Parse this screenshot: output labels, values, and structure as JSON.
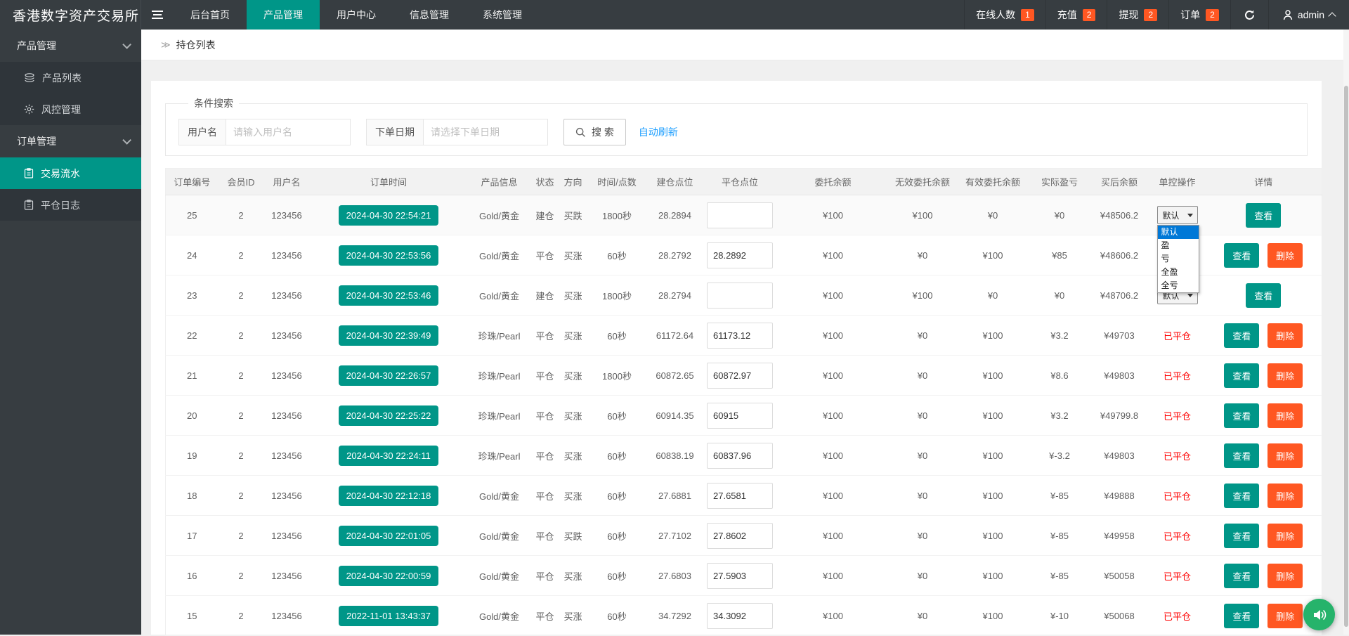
{
  "colors": {
    "teal": "#009688",
    "orange": "#ff5722",
    "red": "#ff0000",
    "green": "#009a00",
    "blue": "#1e9fff"
  },
  "navbar": {
    "logo": "香港数字资产交易所",
    "menu": [
      {
        "label": "后台首页",
        "active": false
      },
      {
        "label": "产品管理",
        "active": true
      },
      {
        "label": "用户中心",
        "active": false
      },
      {
        "label": "信息管理",
        "active": false
      },
      {
        "label": "系统管理",
        "active": false
      }
    ],
    "stats": [
      {
        "label": "在线人数",
        "badge": "1"
      },
      {
        "label": "充值",
        "badge": "2"
      },
      {
        "label": "提现",
        "badge": "2"
      },
      {
        "label": "订单",
        "badge": "2"
      }
    ],
    "refresh_icon": "refresh-icon",
    "user": "admin"
  },
  "sidebar": {
    "items": [
      {
        "label": "产品管理",
        "type": "group"
      },
      {
        "label": "产品列表",
        "type": "child",
        "icon": "layers-icon",
        "active": false
      },
      {
        "label": "风控管理",
        "type": "child",
        "icon": "gear-icon",
        "active": false
      },
      {
        "label": "订单管理",
        "type": "group"
      },
      {
        "label": "交易流水",
        "type": "child",
        "icon": "document-icon",
        "active": true
      },
      {
        "label": "平仓日志",
        "type": "child",
        "icon": "document-icon",
        "active": false
      }
    ]
  },
  "breadcrumb": {
    "arrow": "≫",
    "title": "持仓列表"
  },
  "search": {
    "legend": "条件搜索",
    "username_label": "用户名",
    "username_placeholder": "请输入用户名",
    "username_value": "",
    "date_label": "下单日期",
    "date_placeholder": "请选择下单日期",
    "date_value": "",
    "search_button": "搜 索",
    "auto_refresh": "自动刷新"
  },
  "control_dropdown": {
    "selected": "默认",
    "options": [
      "默认",
      "盈",
      "亏",
      "全盈",
      "全亏"
    ]
  },
  "table": {
    "columns": [
      "订单编号",
      "会员ID",
      "用户名",
      "订单时间",
      "产品信息",
      "状态",
      "方向",
      "时间/点数",
      "建仓点位",
      "平仓点位",
      "委托余额",
      "无效委托余额",
      "有效委托余额",
      "实际盈亏",
      "买后余额",
      "单控操作",
      "详情"
    ],
    "view_label": "查看",
    "delete_label": "删除",
    "closed_label": "已平仓",
    "rows": [
      {
        "id": "25",
        "member": "2",
        "user": "123456",
        "time": "2024-04-30 22:54:21",
        "product": "Gold/黄金",
        "status": "建仓",
        "dir": "买跌",
        "dir_color": "green",
        "dur": "1800秒",
        "open": "28.2894",
        "close": "",
        "entrust": "¥100",
        "invalid": "¥100",
        "valid": "¥0",
        "profit": "¥0",
        "profit_color": "green",
        "balance": "¥48506.2",
        "control": "select",
        "dropdown_open": true,
        "can_delete": false,
        "stripe": true
      },
      {
        "id": "24",
        "member": "2",
        "user": "123456",
        "time": "2024-04-30 22:53:56",
        "product": "Gold/黄金",
        "status": "平仓",
        "dir": "买涨",
        "dir_color": "red",
        "dur": "60秒",
        "open": "28.2792",
        "close": "28.2892",
        "entrust": "¥100",
        "invalid": "¥0",
        "valid": "¥100",
        "profit": "¥85",
        "profit_color": "red",
        "balance": "¥48606.2",
        "control": "closed",
        "dropdown_open": false,
        "can_delete": true,
        "stripe": false
      },
      {
        "id": "23",
        "member": "2",
        "user": "123456",
        "time": "2024-04-30 22:53:46",
        "product": "Gold/黄金",
        "status": "建仓",
        "dir": "买涨",
        "dir_color": "red",
        "dur": "1800秒",
        "open": "28.2794",
        "close": "",
        "entrust": "¥100",
        "invalid": "¥100",
        "valid": "¥0",
        "profit": "¥0",
        "profit_color": "green",
        "balance": "¥48706.2",
        "control": "select",
        "dropdown_open": false,
        "can_delete": false,
        "stripe": false
      },
      {
        "id": "22",
        "member": "2",
        "user": "123456",
        "time": "2024-04-30 22:39:49",
        "product": "珍珠/Pearl",
        "status": "平仓",
        "dir": "买涨",
        "dir_color": "red",
        "dur": "60秒",
        "open": "61172.64",
        "close": "61173.12",
        "entrust": "¥100",
        "invalid": "¥0",
        "valid": "¥100",
        "profit": "¥3.2",
        "profit_color": "red",
        "balance": "¥49703",
        "control": "closed",
        "dropdown_open": false,
        "can_delete": true,
        "stripe": false
      },
      {
        "id": "21",
        "member": "2",
        "user": "123456",
        "time": "2024-04-30 22:26:57",
        "product": "珍珠/Pearl",
        "status": "平仓",
        "dir": "买涨",
        "dir_color": "red",
        "dur": "1800秒",
        "open": "60872.65",
        "close": "60872.97",
        "entrust": "¥100",
        "invalid": "¥0",
        "valid": "¥100",
        "profit": "¥8.6",
        "profit_color": "red",
        "balance": "¥49803",
        "control": "closed",
        "dropdown_open": false,
        "can_delete": true,
        "stripe": false
      },
      {
        "id": "20",
        "member": "2",
        "user": "123456",
        "time": "2024-04-30 22:25:22",
        "product": "珍珠/Pearl",
        "status": "平仓",
        "dir": "买涨",
        "dir_color": "red",
        "dur": "60秒",
        "open": "60914.35",
        "close": "60915",
        "entrust": "¥100",
        "invalid": "¥0",
        "valid": "¥100",
        "profit": "¥3.2",
        "profit_color": "red",
        "balance": "¥49799.8",
        "control": "closed",
        "dropdown_open": false,
        "can_delete": true,
        "stripe": false
      },
      {
        "id": "19",
        "member": "2",
        "user": "123456",
        "time": "2024-04-30 22:24:11",
        "product": "珍珠/Pearl",
        "status": "平仓",
        "dir": "买涨",
        "dir_color": "red",
        "dur": "60秒",
        "open": "60838.19",
        "close": "60837.96",
        "entrust": "¥100",
        "invalid": "¥0",
        "valid": "¥100",
        "profit": "¥-3.2",
        "profit_color": "green",
        "balance": "¥49803",
        "control": "closed",
        "dropdown_open": false,
        "can_delete": true,
        "stripe": false
      },
      {
        "id": "18",
        "member": "2",
        "user": "123456",
        "time": "2024-04-30 22:12:18",
        "product": "Gold/黄金",
        "status": "平仓",
        "dir": "买涨",
        "dir_color": "red",
        "dur": "60秒",
        "open": "27.6881",
        "close": "27.6581",
        "entrust": "¥100",
        "invalid": "¥0",
        "valid": "¥100",
        "profit": "¥-85",
        "profit_color": "green",
        "balance": "¥49888",
        "control": "closed",
        "dropdown_open": false,
        "can_delete": true,
        "stripe": false
      },
      {
        "id": "17",
        "member": "2",
        "user": "123456",
        "time": "2024-04-30 22:01:05",
        "product": "Gold/黄金",
        "status": "平仓",
        "dir": "买跌",
        "dir_color": "green",
        "dur": "60秒",
        "open": "27.7102",
        "close": "27.8602",
        "entrust": "¥100",
        "invalid": "¥0",
        "valid": "¥100",
        "profit": "¥-85",
        "profit_color": "green",
        "balance": "¥49958",
        "control": "closed",
        "dropdown_open": false,
        "can_delete": true,
        "stripe": false
      },
      {
        "id": "16",
        "member": "2",
        "user": "123456",
        "time": "2024-04-30 22:00:59",
        "product": "Gold/黄金",
        "status": "平仓",
        "dir": "买涨",
        "dir_color": "red",
        "dur": "60秒",
        "open": "27.6803",
        "close": "27.5903",
        "entrust": "¥100",
        "invalid": "¥0",
        "valid": "¥100",
        "profit": "¥-85",
        "profit_color": "green",
        "balance": "¥50058",
        "control": "closed",
        "dropdown_open": false,
        "can_delete": true,
        "stripe": false
      },
      {
        "id": "15",
        "member": "2",
        "user": "123456",
        "time": "2022-11-01 13:43:37",
        "product": "Gold/黄金",
        "status": "平仓",
        "dir": "买涨",
        "dir_color": "red",
        "dur": "60秒",
        "open": "34.7292",
        "close": "34.3092",
        "entrust": "¥100",
        "invalid": "¥0",
        "valid": "¥100",
        "profit": "¥-10",
        "profit_color": "green",
        "balance": "¥50068",
        "control": "closed",
        "dropdown_open": false,
        "can_delete": true,
        "stripe": false
      }
    ]
  },
  "floating_button": {
    "icon": "voice-broadcast-icon"
  }
}
